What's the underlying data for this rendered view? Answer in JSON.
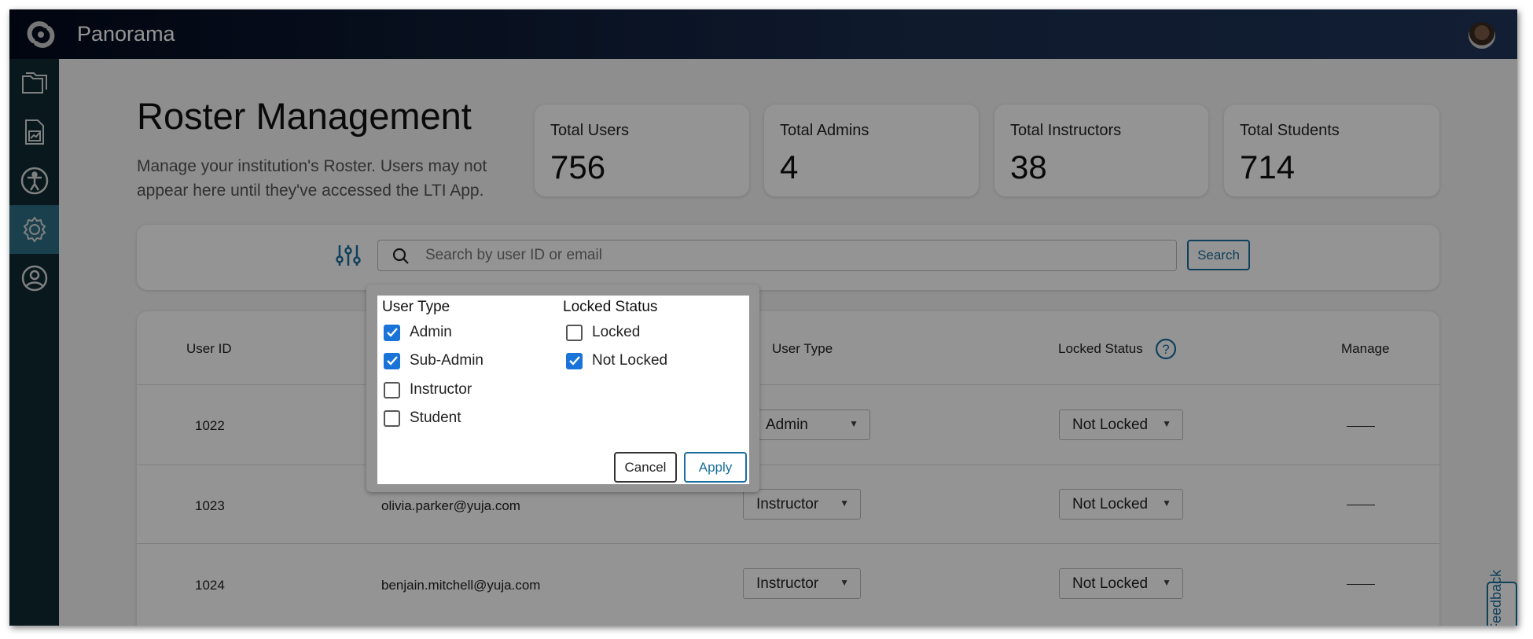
{
  "app": {
    "title": "Panorama"
  },
  "sidebar": {
    "items": [
      {
        "icon": "folder-icon"
      },
      {
        "icon": "report-chart-icon"
      },
      {
        "icon": "accessibility-icon"
      },
      {
        "icon": "gear-icon",
        "active": true
      },
      {
        "icon": "user-circle-icon"
      }
    ]
  },
  "page": {
    "title": "Roster Management",
    "subtitle": "Manage your institution's Roster. Users may not appear here until they've accessed the LTI App."
  },
  "stats": [
    {
      "label": "Total Users",
      "value": "756"
    },
    {
      "label": "Total Admins",
      "value": "4"
    },
    {
      "label": "Total Instructors",
      "value": "38"
    },
    {
      "label": "Total Students",
      "value": "714"
    }
  ],
  "search": {
    "placeholder": "Search by user ID or email",
    "button": "Search"
  },
  "table": {
    "headers": {
      "id": "User ID",
      "type": "User Type",
      "locked": "Locked Status",
      "manage": "Manage"
    },
    "rows": [
      {
        "id": "1022",
        "email": "",
        "type": "Admin",
        "locked": "Not Locked"
      },
      {
        "id": "1023",
        "email": "olivia.parker@yuja.com",
        "type": "Instructor",
        "locked": "Not Locked"
      },
      {
        "id": "1024",
        "email": "benjain.mitchell@yuja.com",
        "type": "Instructor",
        "locked": "Not Locked"
      }
    ]
  },
  "filter": {
    "user_type_title": "User Type",
    "locked_title": "Locked Status",
    "user_types": [
      {
        "label": "Admin",
        "checked": true
      },
      {
        "label": "Sub-Admin",
        "checked": true
      },
      {
        "label": "Instructor",
        "checked": false
      },
      {
        "label": "Student",
        "checked": false
      }
    ],
    "locked": [
      {
        "label": "Locked",
        "checked": false
      },
      {
        "label": "Not Locked",
        "checked": true
      }
    ],
    "cancel": "Cancel",
    "apply": "Apply"
  },
  "feedback": "Feedback",
  "colors": {
    "accent": "#1a6e9e",
    "checkbox": "#1a73d8",
    "topbar": "#1a2d4e",
    "sidebar": "#0e2a33"
  }
}
